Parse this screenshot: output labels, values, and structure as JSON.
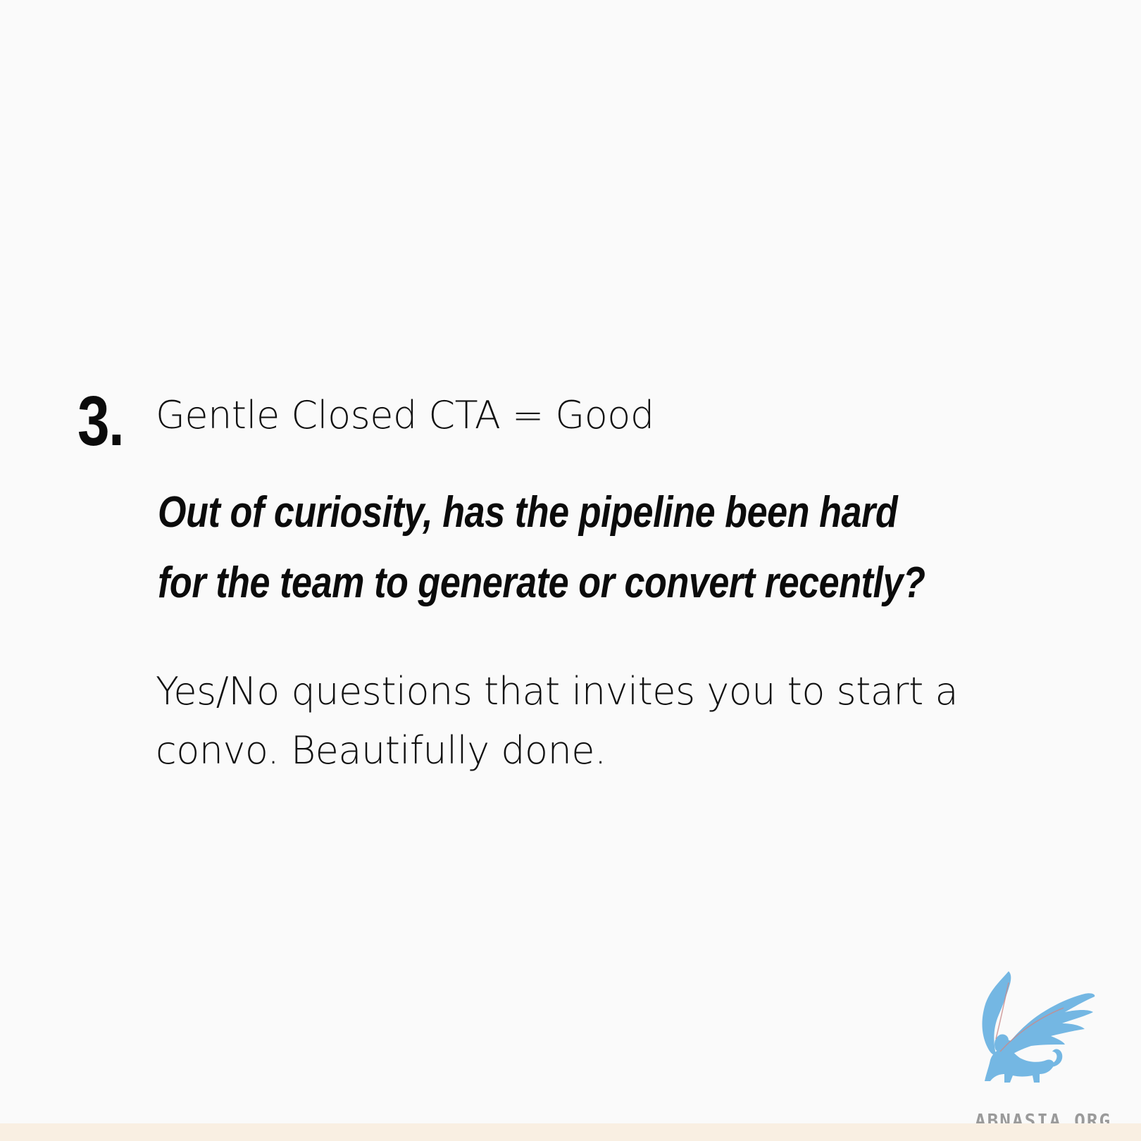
{
  "tip": {
    "number": "3.",
    "title": "Gentle Closed CTA = Good"
  },
  "quote": {
    "lines": [
      "Out of curiosity, has the pipeline been hard",
      "for the team to generate or convert recently?"
    ]
  },
  "body": {
    "lines": [
      "Yes/No questions that invites you to start a",
      "convo. Beautifully done."
    ]
  },
  "brand": {
    "watermark": "ABNASIA.ORG",
    "logo_icon": "griffin-logo",
    "logo_color": "#74b7e3",
    "strip_color": "#f9efe2"
  }
}
